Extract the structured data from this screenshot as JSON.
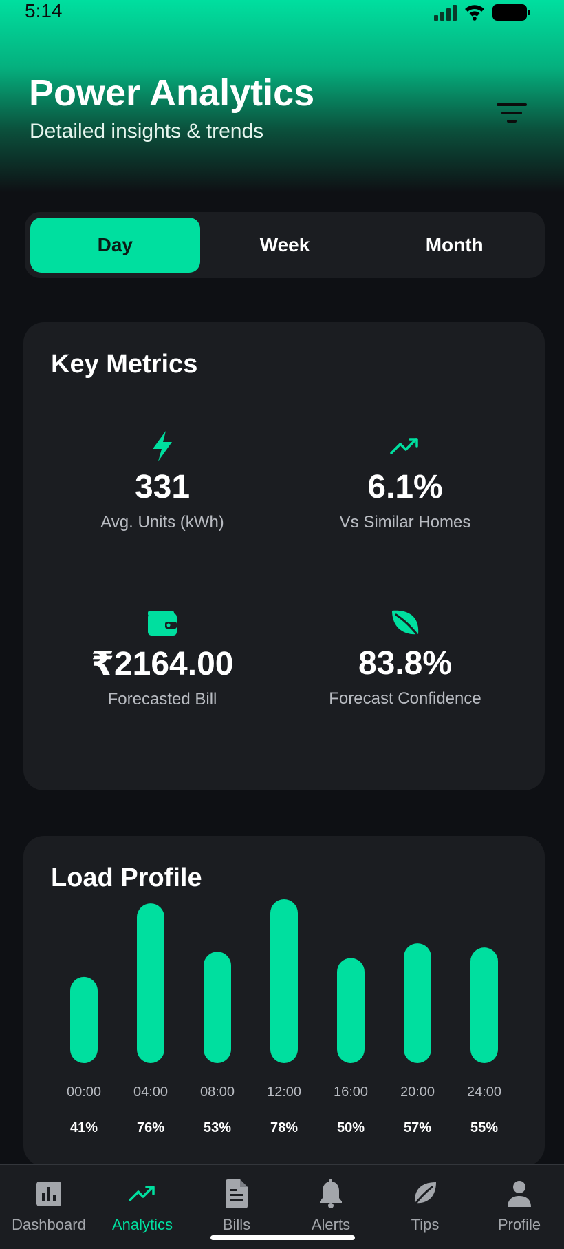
{
  "status": {
    "time": "5:14"
  },
  "header": {
    "title": "Power Analytics",
    "subtitle": "Detailed insights & trends"
  },
  "tabs": [
    {
      "label": "Day",
      "active": true
    },
    {
      "label": "Week",
      "active": false
    },
    {
      "label": "Month",
      "active": false
    }
  ],
  "metrics": {
    "title": "Key Metrics",
    "items": [
      {
        "icon": "lightning-icon",
        "value": "331",
        "label": "Avg. Units (kWh)"
      },
      {
        "icon": "trending-up-icon",
        "value": "6.1%",
        "label": "Vs Similar Homes"
      },
      {
        "icon": "wallet-icon",
        "value": "₹2164.00",
        "label": "Forecasted Bill"
      },
      {
        "icon": "leaf-icon",
        "value": "83.8%",
        "label": "Forecast Confidence"
      }
    ]
  },
  "load_profile": {
    "title": "Load Profile"
  },
  "chart_data": {
    "type": "bar",
    "title": "Load Profile",
    "categories": [
      "00:00",
      "04:00",
      "08:00",
      "12:00",
      "16:00",
      "20:00",
      "24:00"
    ],
    "values": [
      41,
      76,
      53,
      78,
      50,
      57,
      55
    ],
    "value_labels": [
      "41%",
      "76%",
      "53%",
      "78%",
      "50%",
      "57%",
      "55%"
    ],
    "unit": "%",
    "ylim": [
      0,
      100
    ],
    "grid": false,
    "bar_color": "#00df9f"
  },
  "nav": [
    {
      "label": "Dashboard",
      "icon": "bar-chart-icon",
      "active": false
    },
    {
      "label": "Analytics",
      "icon": "trending-up-icon",
      "active": true
    },
    {
      "label": "Bills",
      "icon": "document-icon",
      "active": false
    },
    {
      "label": "Alerts",
      "icon": "bell-icon",
      "active": false
    },
    {
      "label": "Tips",
      "icon": "leaf-icon",
      "active": false
    },
    {
      "label": "Profile",
      "icon": "person-icon",
      "active": false
    }
  ],
  "colors": {
    "accent": "#00df9f",
    "background": "#0e1014",
    "card": "#1b1d21",
    "muted_text": "#b9bcc2"
  }
}
